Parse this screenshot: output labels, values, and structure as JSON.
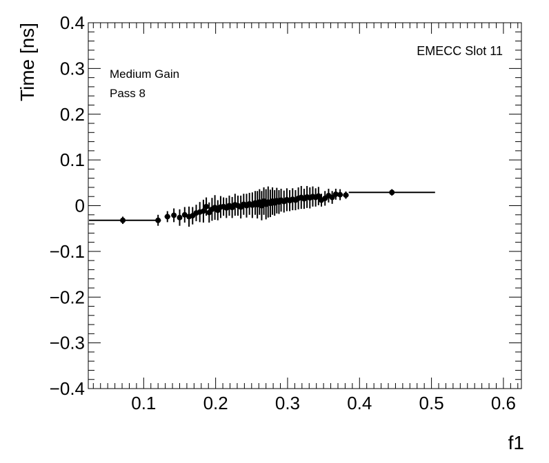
{
  "chart_data": {
    "type": "scatter",
    "title": "",
    "xlabel": "f1",
    "ylabel": "Time [ns]",
    "xlim": [
      0.023,
      0.625
    ],
    "ylim": [
      -0.4,
      0.4
    ],
    "x_ticks": [
      0.1,
      0.2,
      0.3,
      0.4,
      0.5,
      0.6
    ],
    "x_tick_labels": [
      "0.1",
      "0.2",
      "0.3",
      "0.4",
      "0.5",
      "0.6"
    ],
    "y_ticks": [
      0.4,
      0.3,
      0.2,
      0.1,
      0,
      -0.1,
      -0.2,
      -0.3,
      -0.4
    ],
    "y_tick_labels": [
      "0.4",
      "0.3",
      "0.2",
      "0.1",
      "0",
      "−0.1",
      "−0.2",
      "−0.3",
      "−0.4"
    ],
    "grid": false,
    "annotations": {
      "gain": "Medium Gain",
      "pass": "Pass 8",
      "slot": "EMECC Slot 11"
    },
    "series": [
      {
        "points": [
          {
            "x": 0.071,
            "y": -0.032,
            "xerr": 0.047,
            "yerr": 0.008
          },
          {
            "x": 0.12,
            "y": -0.032,
            "xerr": 0.004,
            "yerr": 0.012
          },
          {
            "x": 0.133,
            "y": -0.024,
            "xerr": 0.004,
            "yerr": 0.012
          },
          {
            "x": 0.142,
            "y": -0.021,
            "xerr": 0.003,
            "yerr": 0.015
          },
          {
            "x": 0.15,
            "y": -0.026,
            "xerr": 0.003,
            "yerr": 0.018
          },
          {
            "x": 0.157,
            "y": -0.02,
            "xerr": 0.003,
            "yerr": 0.017
          },
          {
            "x": 0.163,
            "y": -0.024,
            "xerr": 0.003,
            "yerr": 0.022
          },
          {
            "x": 0.168,
            "y": -0.022,
            "xerr": 0.002,
            "yerr": 0.019
          },
          {
            "x": 0.173,
            "y": -0.016,
            "xerr": 0.002,
            "yerr": 0.018
          },
          {
            "x": 0.178,
            "y": -0.014,
            "xerr": 0.002,
            "yerr": 0.022
          },
          {
            "x": 0.183,
            "y": -0.012,
            "xerr": 0.002,
            "yerr": 0.025
          },
          {
            "x": 0.187,
            "y": -0.002,
            "xerr": 0.002,
            "yerr": 0.02
          },
          {
            "x": 0.191,
            "y": -0.015,
            "xerr": 0.002,
            "yerr": 0.022
          },
          {
            "x": 0.195,
            "y": -0.008,
            "xerr": 0.002,
            "yerr": 0.025
          },
          {
            "x": 0.199,
            "y": -0.004,
            "xerr": 0.002,
            "yerr": 0.027
          },
          {
            "x": 0.203,
            "y": -0.01,
            "xerr": 0.002,
            "yerr": 0.022
          },
          {
            "x": 0.207,
            "y": -0.003,
            "xerr": 0.002,
            "yerr": 0.024
          },
          {
            "x": 0.211,
            "y": -0.002,
            "xerr": 0.002,
            "yerr": 0.02
          },
          {
            "x": 0.215,
            "y": -0.005,
            "xerr": 0.002,
            "yerr": 0.022
          },
          {
            "x": 0.219,
            "y": 0.0,
            "xerr": 0.002,
            "yerr": 0.022
          },
          {
            "x": 0.223,
            "y": -0.004,
            "xerr": 0.002,
            "yerr": 0.023
          },
          {
            "x": 0.227,
            "y": 0.002,
            "xerr": 0.002,
            "yerr": 0.024
          },
          {
            "x": 0.231,
            "y": 0.0,
            "xerr": 0.002,
            "yerr": 0.022
          },
          {
            "x": 0.235,
            "y": -0.003,
            "xerr": 0.002,
            "yerr": 0.025
          },
          {
            "x": 0.239,
            "y": 0.003,
            "xerr": 0.002,
            "yerr": 0.023
          },
          {
            "x": 0.243,
            "y": 0.0,
            "xerr": 0.002,
            "yerr": 0.026
          },
          {
            "x": 0.247,
            "y": 0.004,
            "xerr": 0.002,
            "yerr": 0.024
          },
          {
            "x": 0.251,
            "y": 0.001,
            "xerr": 0.002,
            "yerr": 0.028
          },
          {
            "x": 0.255,
            "y": 0.006,
            "xerr": 0.002,
            "yerr": 0.026
          },
          {
            "x": 0.258,
            "y": 0.002,
            "xerr": 0.002,
            "yerr": 0.03
          },
          {
            "x": 0.261,
            "y": 0.008,
            "xerr": 0.002,
            "yerr": 0.028
          },
          {
            "x": 0.264,
            "y": 0.0,
            "xerr": 0.002,
            "yerr": 0.032
          },
          {
            "x": 0.267,
            "y": 0.01,
            "xerr": 0.002,
            "yerr": 0.03
          },
          {
            "x": 0.27,
            "y": 0.003,
            "xerr": 0.002,
            "yerr": 0.033
          },
          {
            "x": 0.273,
            "y": 0.008,
            "xerr": 0.002,
            "yerr": 0.034
          },
          {
            "x": 0.276,
            "y": 0.005,
            "xerr": 0.002,
            "yerr": 0.03
          },
          {
            "x": 0.279,
            "y": 0.01,
            "xerr": 0.002,
            "yerr": 0.03
          },
          {
            "x": 0.282,
            "y": 0.006,
            "xerr": 0.002,
            "yerr": 0.028
          },
          {
            "x": 0.285,
            "y": 0.011,
            "xerr": 0.002,
            "yerr": 0.028
          },
          {
            "x": 0.288,
            "y": 0.008,
            "xerr": 0.002,
            "yerr": 0.026
          },
          {
            "x": 0.291,
            "y": 0.012,
            "xerr": 0.002,
            "yerr": 0.025
          },
          {
            "x": 0.295,
            "y": 0.009,
            "xerr": 0.002,
            "yerr": 0.024
          },
          {
            "x": 0.299,
            "y": 0.013,
            "xerr": 0.002,
            "yerr": 0.025
          },
          {
            "x": 0.303,
            "y": 0.011,
            "xerr": 0.002,
            "yerr": 0.023
          },
          {
            "x": 0.307,
            "y": 0.014,
            "xerr": 0.002,
            "yerr": 0.024
          },
          {
            "x": 0.311,
            "y": 0.012,
            "xerr": 0.002,
            "yerr": 0.022
          },
          {
            "x": 0.315,
            "y": 0.016,
            "xerr": 0.002,
            "yerr": 0.024
          },
          {
            "x": 0.319,
            "y": 0.018,
            "xerr": 0.002,
            "yerr": 0.025
          },
          {
            "x": 0.323,
            "y": 0.015,
            "xerr": 0.002,
            "yerr": 0.022
          },
          {
            "x": 0.327,
            "y": 0.019,
            "xerr": 0.002,
            "yerr": 0.024
          },
          {
            "x": 0.331,
            "y": 0.017,
            "xerr": 0.002,
            "yerr": 0.023
          },
          {
            "x": 0.335,
            "y": 0.02,
            "xerr": 0.002,
            "yerr": 0.022
          },
          {
            "x": 0.339,
            "y": 0.018,
            "xerr": 0.002,
            "yerr": 0.02
          },
          {
            "x": 0.343,
            "y": 0.021,
            "xerr": 0.002,
            "yerr": 0.02
          },
          {
            "x": 0.347,
            "y": 0.012,
            "xerr": 0.002,
            "yerr": 0.014
          },
          {
            "x": 0.352,
            "y": 0.016,
            "xerr": 0.002,
            "yerr": 0.016
          },
          {
            "x": 0.357,
            "y": 0.022,
            "xerr": 0.002,
            "yerr": 0.015
          },
          {
            "x": 0.362,
            "y": 0.018,
            "xerr": 0.002,
            "yerr": 0.014
          },
          {
            "x": 0.367,
            "y": 0.025,
            "xerr": 0.003,
            "yerr": 0.012
          },
          {
            "x": 0.373,
            "y": 0.024,
            "xerr": 0.003,
            "yerr": 0.012
          },
          {
            "x": 0.381,
            "y": 0.023,
            "xerr": 0.004,
            "yerr": 0.008
          },
          {
            "x": 0.445,
            "y": 0.029,
            "xerr": 0.06,
            "yerr": 0.007
          }
        ]
      }
    ]
  }
}
